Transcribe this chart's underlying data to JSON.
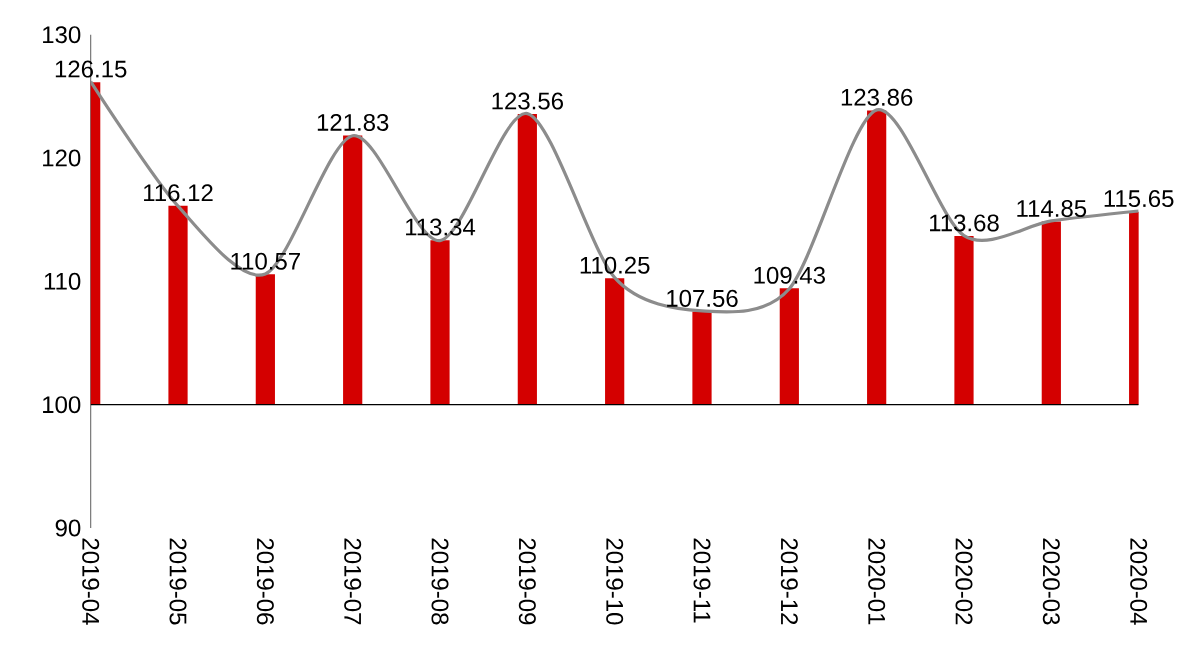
{
  "chart_data": {
    "type": "bar",
    "categories": [
      "2019-04",
      "2019-05",
      "2019-06",
      "2019-07",
      "2019-08",
      "2019-09",
      "2019-10",
      "2019-11",
      "2019-12",
      "2020-01",
      "2020-02",
      "2020-03",
      "2020-04"
    ],
    "series": [
      {
        "color": "#d40000",
        "base": [
          100,
          100,
          100,
          100,
          100,
          100,
          100,
          100,
          100,
          100,
          100,
          100,
          100
        ],
        "values": [
          26.15,
          16.12,
          10.57,
          21.83,
          13.34,
          23.56,
          10.25,
          7.56,
          9.43,
          23.86,
          13.68,
          14.85,
          15.65
        ],
        "value_labels": [
          "126.15",
          "116.12",
          "110.57",
          "121.83",
          "113.34",
          "123.56",
          "110.25",
          "107.56",
          "109.43",
          "123.86",
          "113.68",
          "114.85",
          "115.65"
        ]
      },
      {
        "type": "line",
        "color": "#8c8c8c",
        "values": [
          126.2,
          116.1,
          110.6,
          121.8,
          113.3,
          123.6,
          110.3,
          107.6,
          109.4,
          123.9,
          113.7,
          114.9,
          115.7
        ]
      }
    ],
    "ylim": [
      90,
      130
    ],
    "yticks": [
      90,
      100,
      110,
      120,
      130
    ],
    "ref_lines": [
      {
        "axis": "y",
        "value": 100,
        "color": "#000000"
      }
    ],
    "grid": false,
    "marker": "none",
    "line_style": "solid"
  }
}
